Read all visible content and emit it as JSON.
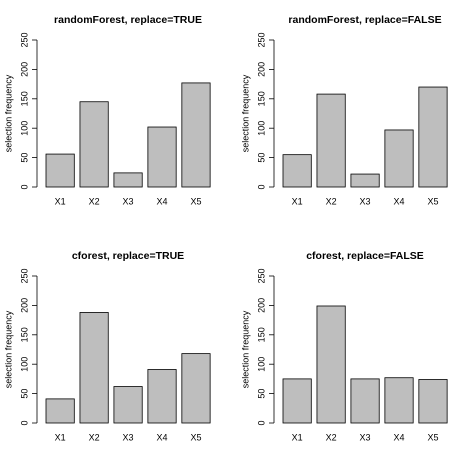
{
  "chart_data": [
    {
      "type": "bar",
      "title": "randomForest, replace=TRUE",
      "y_label": "selection frequency",
      "categories": [
        "X1",
        "X2",
        "X3",
        "X4",
        "X5"
      ],
      "values": [
        56,
        145,
        24,
        102,
        177
      ],
      "color": "#bebebe",
      "ylim": [
        0,
        250
      ],
      "yticks": [
        0,
        50,
        100,
        150,
        200,
        250
      ]
    },
    {
      "type": "bar",
      "title": "randomForest, replace=FALSE",
      "y_label": "selection frequency",
      "categories": [
        "X1",
        "X2",
        "X3",
        "X4",
        "X5"
      ],
      "values": [
        55,
        158,
        22,
        97,
        170
      ],
      "color": "#bebebe",
      "ylim": [
        0,
        250
      ],
      "yticks": [
        0,
        50,
        100,
        150,
        200,
        250
      ]
    },
    {
      "type": "bar",
      "title": "cforest, replace=TRUE",
      "y_label": "selection frequency",
      "categories": [
        "X1",
        "X2",
        "X3",
        "X4",
        "X5"
      ],
      "values": [
        41,
        188,
        62,
        91,
        118
      ],
      "color": "#bebebe",
      "ylim": [
        0,
        250
      ],
      "yticks": [
        0,
        50,
        100,
        150,
        200,
        250
      ]
    },
    {
      "type": "bar",
      "title": "cforest, replace=FALSE",
      "y_label": "selection frequency",
      "categories": [
        "X1",
        "X2",
        "X3",
        "X4",
        "X5"
      ],
      "values": [
        75,
        199,
        75,
        77,
        74
      ],
      "color": "#bebebe",
      "ylim": [
        0,
        250
      ],
      "yticks": [
        0,
        50,
        100,
        150,
        200,
        250
      ]
    }
  ]
}
